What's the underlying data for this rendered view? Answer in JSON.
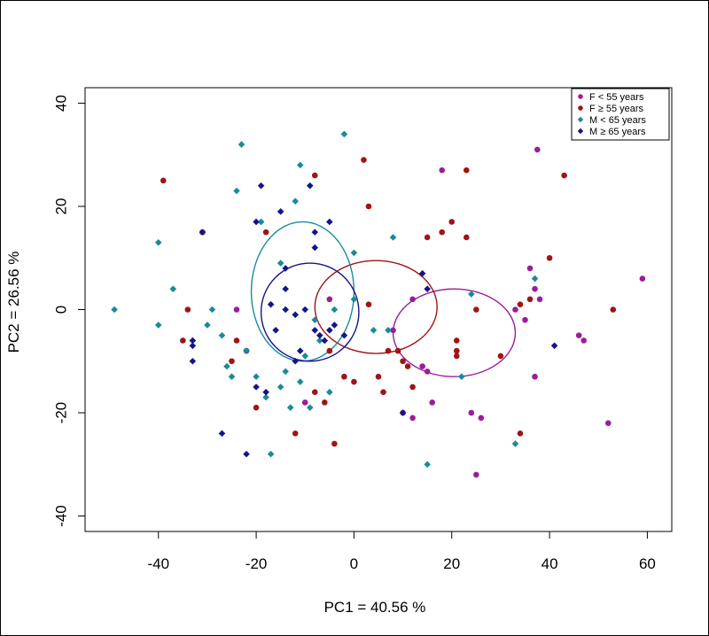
{
  "chart_data": {
    "type": "scatter",
    "title": "",
    "xlabel": "PC1 = 40.56  %",
    "ylabel": "PC2 = 26.56  %",
    "xlim": [
      -55,
      65
    ],
    "ylim": [
      -43,
      43
    ],
    "xticks": [
      -40,
      -20,
      0,
      20,
      40,
      60
    ],
    "yticks": [
      -40,
      -20,
      0,
      20,
      40
    ],
    "legend_position": "top-right",
    "series": [
      {
        "name": "F < 55 years",
        "color": "#9b1d9b",
        "marker": "circle",
        "points": [
          [
            37.5,
            31
          ],
          [
            18,
            27
          ],
          [
            12,
            2
          ],
          [
            8,
            -4
          ],
          [
            14,
            -11
          ],
          [
            15,
            -12
          ],
          [
            16,
            -18
          ],
          [
            10,
            -20
          ],
          [
            12,
            -21
          ],
          [
            24,
            -20
          ],
          [
            25,
            -32
          ],
          [
            26,
            -21
          ],
          [
            33,
            0
          ],
          [
            36,
            8
          ],
          [
            37,
            4
          ],
          [
            38,
            2
          ],
          [
            35,
            -2
          ],
          [
            37,
            -13
          ],
          [
            46,
            -5
          ],
          [
            47,
            -6
          ],
          [
            52,
            -22
          ],
          [
            59,
            6
          ],
          [
            -10,
            -18
          ],
          [
            -24,
            0
          ],
          [
            -22,
            -8
          ],
          [
            -5,
            2
          ]
        ]
      },
      {
        "name": "F ≥ 55 years",
        "color": "#a01414",
        "marker": "circle",
        "points": [
          [
            -39,
            25
          ],
          [
            -31,
            15
          ],
          [
            -34,
            0
          ],
          [
            -35,
            -6
          ],
          [
            -24,
            -6
          ],
          [
            -25,
            -10
          ],
          [
            -20,
            -19
          ],
          [
            -18,
            15
          ],
          [
            -12,
            -24
          ],
          [
            -8,
            -16
          ],
          [
            -8,
            26
          ],
          [
            -6,
            -18
          ],
          [
            -4,
            -26
          ],
          [
            -2,
            -13
          ],
          [
            0,
            -14
          ],
          [
            2,
            29
          ],
          [
            3,
            20
          ],
          [
            5,
            -13
          ],
          [
            6,
            -16
          ],
          [
            7,
            -8
          ],
          [
            9,
            -8
          ],
          [
            10,
            -10
          ],
          [
            11,
            -11
          ],
          [
            12,
            -15
          ],
          [
            15,
            14
          ],
          [
            18,
            15
          ],
          [
            20,
            17
          ],
          [
            21,
            -6
          ],
          [
            21,
            -9
          ],
          [
            21,
            -8
          ],
          [
            23,
            27
          ],
          [
            23,
            14
          ],
          [
            25,
            0
          ],
          [
            30,
            -9
          ],
          [
            34,
            1
          ],
          [
            34,
            -24
          ],
          [
            36,
            2
          ],
          [
            40,
            10
          ],
          [
            43,
            26
          ],
          [
            53,
            0
          ],
          [
            -5,
            -8
          ],
          [
            3,
            1
          ]
        ]
      },
      {
        "name": "M < 65 years",
        "color": "#1a8a9a",
        "marker": "diamond",
        "points": [
          [
            -49,
            0
          ],
          [
            -40,
            13
          ],
          [
            -40,
            -3
          ],
          [
            -37,
            4
          ],
          [
            -30,
            -3
          ],
          [
            -29,
            0
          ],
          [
            -27,
            -5
          ],
          [
            -25,
            -13
          ],
          [
            -26,
            -11
          ],
          [
            -23,
            32
          ],
          [
            -24,
            23
          ],
          [
            -22,
            -8
          ],
          [
            -20,
            -13
          ],
          [
            -19,
            17
          ],
          [
            -18,
            -17
          ],
          [
            -17,
            -28
          ],
          [
            -15,
            -15
          ],
          [
            -15,
            9
          ],
          [
            -13,
            -19
          ],
          [
            -12,
            21
          ],
          [
            -11,
            28
          ],
          [
            -11,
            -14
          ],
          [
            -10,
            -9
          ],
          [
            -9,
            -19
          ],
          [
            -8,
            -2
          ],
          [
            -7,
            -6
          ],
          [
            -5,
            -16
          ],
          [
            -4,
            0
          ],
          [
            -2,
            34
          ],
          [
            0,
            2
          ],
          [
            0,
            11
          ],
          [
            4,
            -4
          ],
          [
            7,
            -4
          ],
          [
            8,
            14
          ],
          [
            15,
            -30
          ],
          [
            22,
            -13
          ],
          [
            24,
            3
          ],
          [
            33,
            -26
          ],
          [
            37,
            6
          ],
          [
            -14,
            -12
          ]
        ]
      },
      {
        "name": "M ≥ 65 years",
        "color": "#15158a",
        "marker": "diamond",
        "points": [
          [
            -31,
            15
          ],
          [
            -33,
            -6
          ],
          [
            -33,
            -7
          ],
          [
            -33,
            -10
          ],
          [
            -27,
            -24
          ],
          [
            -22,
            -28
          ],
          [
            -20,
            17
          ],
          [
            -20,
            -15
          ],
          [
            -18,
            -16
          ],
          [
            -19,
            24
          ],
          [
            -15,
            19
          ],
          [
            -14,
            8
          ],
          [
            -14,
            4
          ],
          [
            -14,
            0
          ],
          [
            -12,
            -1
          ],
          [
            -11,
            -8
          ],
          [
            -9,
            24
          ],
          [
            -8,
            15
          ],
          [
            -8,
            12
          ],
          [
            -8,
            -4
          ],
          [
            -6,
            -6
          ],
          [
            -5,
            -4
          ],
          [
            -5,
            17
          ],
          [
            -4,
            -3
          ],
          [
            -10,
            0
          ],
          [
            -16,
            -4
          ],
          [
            -17,
            1
          ],
          [
            10,
            -20
          ],
          [
            14,
            7
          ],
          [
            15,
            4
          ],
          [
            41,
            -7
          ],
          [
            -2,
            -5
          ],
          [
            -7,
            -5
          ],
          [
            -12,
            -10
          ]
        ]
      }
    ],
    "ellipses": [
      {
        "series": "F < 55 years",
        "color": "#9b1d9b",
        "cx": 20.5,
        "cy": -4.5,
        "rx": 12.5,
        "ry": 8.5
      },
      {
        "series": "F ≥ 55 years",
        "color": "#a01414",
        "cx": 4.5,
        "cy": 0.5,
        "rx": 12.5,
        "ry": 9
      },
      {
        "series": "M < 65 years",
        "color": "#1a8a9a",
        "cx": -10.5,
        "cy": 3.5,
        "rx": 10.5,
        "ry": 13.5
      },
      {
        "series": "M ≥ 65 years",
        "color": "#15158a",
        "cx": -9,
        "cy": -0.5,
        "rx": 10,
        "ry": 9.5
      }
    ]
  }
}
